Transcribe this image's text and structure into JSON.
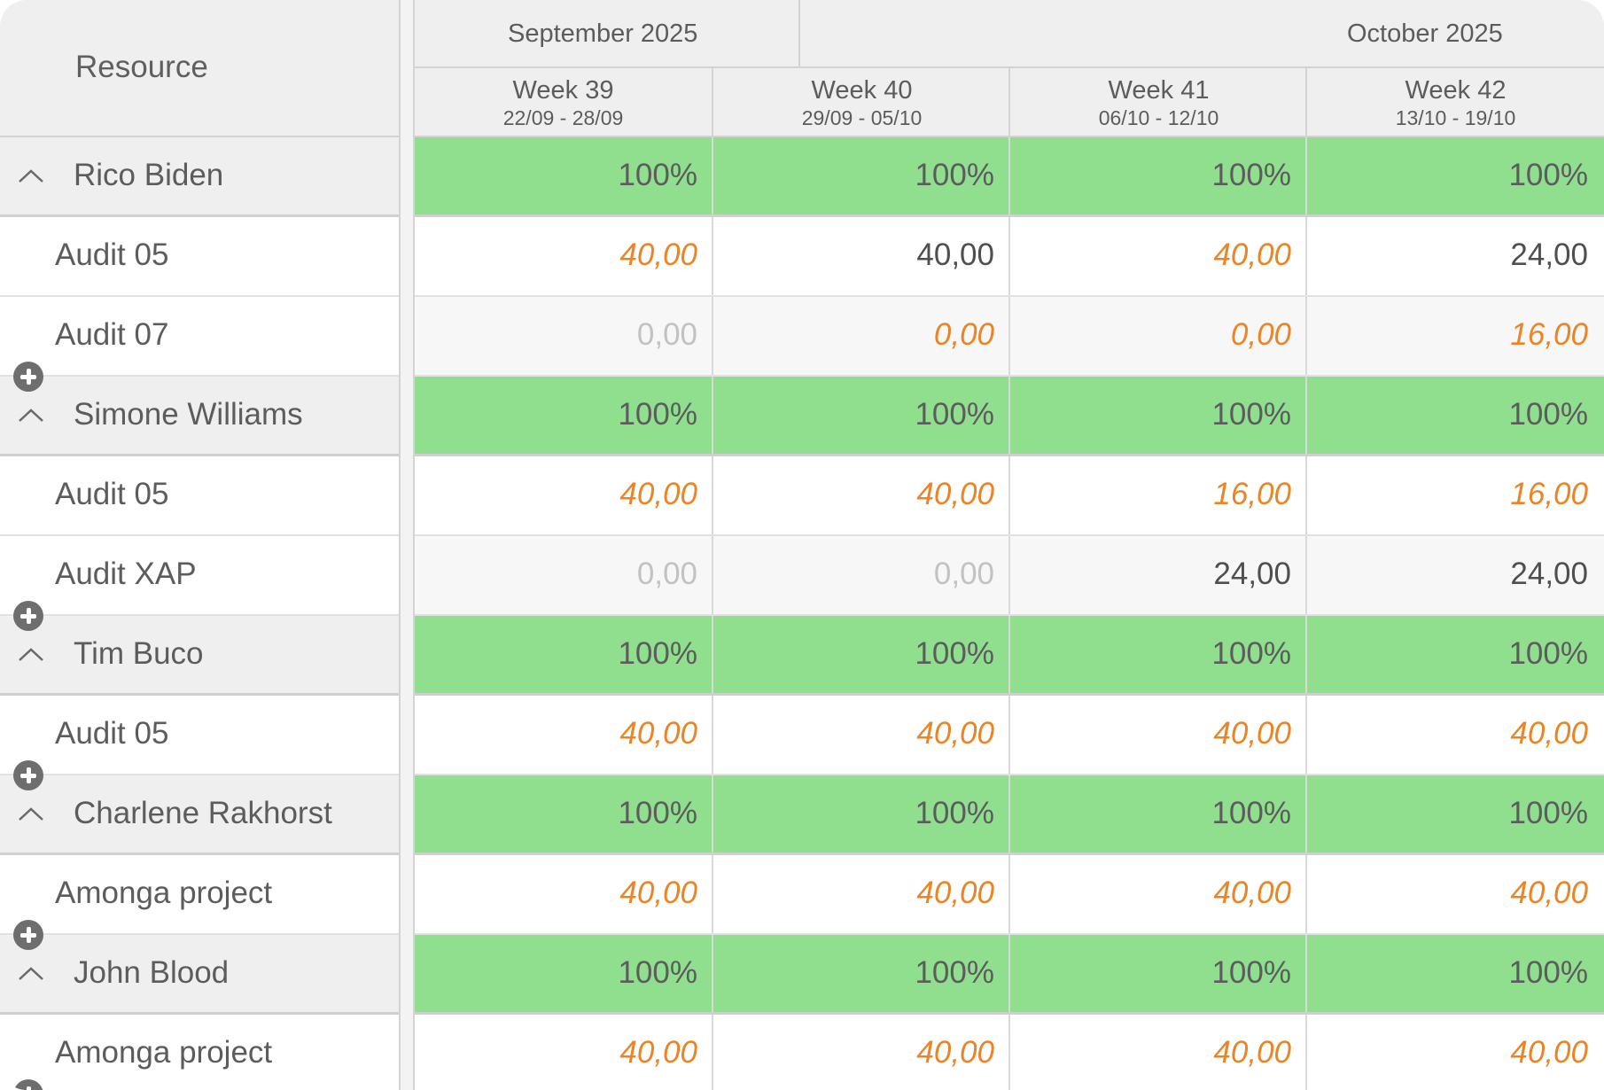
{
  "resource_header": "Resource",
  "months": [
    {
      "label": "September 2025"
    },
    {
      "label": "October 2025"
    }
  ],
  "weeks": [
    {
      "label": "Week 39",
      "dates": "22/09 - 28/09"
    },
    {
      "label": "Week 40",
      "dates": "29/09 - 05/10"
    },
    {
      "label": "Week 41",
      "dates": "06/10 - 12/10"
    },
    {
      "label": "Week 42",
      "dates": "13/10 - 19/10"
    }
  ],
  "icons": {
    "collapse": "chevron-up-icon",
    "add": "plus-circle-icon"
  },
  "colors": {
    "utilization_green": "#90df8f",
    "planned_orange": "#eb8424",
    "header_gray": "#efefef",
    "text_dark": "#5c5c5c",
    "text_muted": "#c2c2c2"
  },
  "rows": [
    {
      "type": "group",
      "name": "Rico Biden",
      "cells": [
        {
          "value": "100%",
          "style": "pct"
        },
        {
          "value": "100%",
          "style": "pct"
        },
        {
          "value": "100%",
          "style": "pct"
        },
        {
          "value": "100%",
          "style": "pct"
        }
      ]
    },
    {
      "type": "task",
      "name": "Audit 05",
      "cells": [
        {
          "value": "40,00",
          "style": "orange"
        },
        {
          "value": "40,00",
          "style": "dark"
        },
        {
          "value": "40,00",
          "style": "orange"
        },
        {
          "value": "24,00",
          "style": "dark"
        }
      ]
    },
    {
      "type": "task",
      "name": "Audit 07",
      "alt": true,
      "add": true,
      "cells": [
        {
          "value": "0,00",
          "style": "muted"
        },
        {
          "value": "0,00",
          "style": "orange"
        },
        {
          "value": "0,00",
          "style": "orange"
        },
        {
          "value": "16,00",
          "style": "orange"
        }
      ]
    },
    {
      "type": "group",
      "name": "Simone Williams",
      "cells": [
        {
          "value": "100%",
          "style": "pct"
        },
        {
          "value": "100%",
          "style": "pct"
        },
        {
          "value": "100%",
          "style": "pct"
        },
        {
          "value": "100%",
          "style": "pct"
        }
      ]
    },
    {
      "type": "task",
      "name": "Audit 05",
      "cells": [
        {
          "value": "40,00",
          "style": "orange"
        },
        {
          "value": "40,00",
          "style": "orange"
        },
        {
          "value": "16,00",
          "style": "orange"
        },
        {
          "value": "16,00",
          "style": "orange"
        }
      ]
    },
    {
      "type": "task",
      "name": "Audit XAP",
      "alt": true,
      "add": true,
      "cells": [
        {
          "value": "0,00",
          "style": "muted"
        },
        {
          "value": "0,00",
          "style": "muted"
        },
        {
          "value": "24,00",
          "style": "dark"
        },
        {
          "value": "24,00",
          "style": "dark"
        }
      ]
    },
    {
      "type": "group",
      "name": "Tim Buco",
      "cells": [
        {
          "value": "100%",
          "style": "pct"
        },
        {
          "value": "100%",
          "style": "pct"
        },
        {
          "value": "100%",
          "style": "pct"
        },
        {
          "value": "100%",
          "style": "pct"
        }
      ]
    },
    {
      "type": "task",
      "name": "Audit 05",
      "add": true,
      "cells": [
        {
          "value": "40,00",
          "style": "orange"
        },
        {
          "value": "40,00",
          "style": "orange"
        },
        {
          "value": "40,00",
          "style": "orange"
        },
        {
          "value": "40,00",
          "style": "orange"
        }
      ]
    },
    {
      "type": "group",
      "name": "Charlene Rakhorst",
      "cells": [
        {
          "value": "100%",
          "style": "pct"
        },
        {
          "value": "100%",
          "style": "pct"
        },
        {
          "value": "100%",
          "style": "pct"
        },
        {
          "value": "100%",
          "style": "pct"
        }
      ]
    },
    {
      "type": "task",
      "name": "Amonga project",
      "add": true,
      "cells": [
        {
          "value": "40,00",
          "style": "orange"
        },
        {
          "value": "40,00",
          "style": "orange"
        },
        {
          "value": "40,00",
          "style": "orange"
        },
        {
          "value": "40,00",
          "style": "orange"
        }
      ]
    },
    {
      "type": "group",
      "name": "John Blood",
      "cells": [
        {
          "value": "100%",
          "style": "pct"
        },
        {
          "value": "100%",
          "style": "pct"
        },
        {
          "value": "100%",
          "style": "pct"
        },
        {
          "value": "100%",
          "style": "pct"
        }
      ]
    },
    {
      "type": "task",
      "name": "Amonga project",
      "add": true,
      "cells": [
        {
          "value": "40,00",
          "style": "orange"
        },
        {
          "value": "40,00",
          "style": "orange"
        },
        {
          "value": "40,00",
          "style": "orange"
        },
        {
          "value": "40,00",
          "style": "orange"
        }
      ]
    }
  ]
}
